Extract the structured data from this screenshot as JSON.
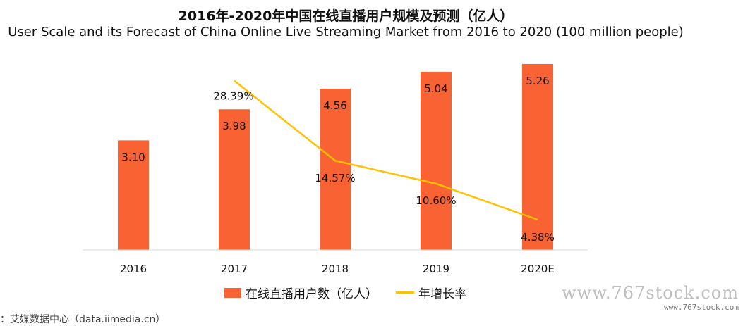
{
  "title_zh": "2016年-2020年中国在线直播用户规模及预测（亿人）",
  "title_en": "User Scale and its Forecast of China Online Live Streaming Market from 2016 to 2020 (100 million people)",
  "chart_data": {
    "type": "bar",
    "categories": [
      "2016",
      "2017",
      "2018",
      "2019",
      "2020E"
    ],
    "series": [
      {
        "name": "在线直播用户数（亿人）",
        "type": "bar",
        "values": [
          3.1,
          3.98,
          4.56,
          5.04,
          5.26
        ],
        "labels": [
          "3.10",
          "3.98",
          "4.56",
          "5.04",
          "5.26"
        ]
      },
      {
        "name": "年增长率",
        "type": "line",
        "values": [
          null,
          28.39,
          14.57,
          10.6,
          4.38
        ],
        "labels": [
          "",
          "28.39%",
          "14.57%",
          "10.60%",
          "4.38%"
        ]
      }
    ],
    "ylim": [
      0,
      6
    ],
    "y2lim": [
      0,
      36
    ],
    "grid": false,
    "legend": "bottom"
  },
  "colors": {
    "bar": "#f96233",
    "line": "#ffc000",
    "axis": "#d9d9d9"
  },
  "watermark": {
    "big": "www.767stock.com",
    "small": "www.767stock.com"
  },
  "source": "：艾媒数据中心（data.iimedia.cn）"
}
